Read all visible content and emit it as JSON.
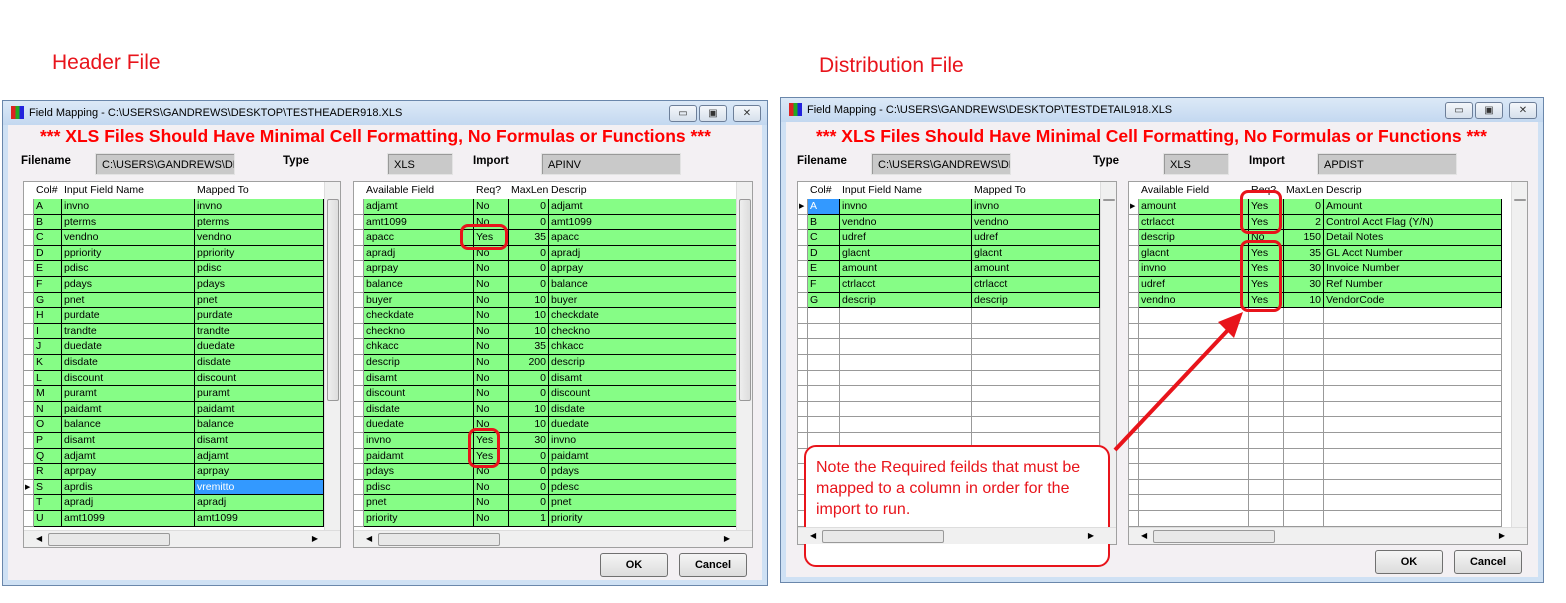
{
  "captions": {
    "header": "Header File",
    "distribution": "Distribution File"
  },
  "colors": {
    "mapped_row": "#86fd86",
    "selected": "#3399ff",
    "annotation": "#e8141b"
  },
  "header_window": {
    "title": "Field Mapping - C:\\USERS\\GANDREWS\\DESKTOP\\TESTHEADER918.XLS",
    "warning": "*** XLS Files Should Have Minimal Cell Formatting, No Formulas or Functions ***",
    "filename_label": "Filename",
    "filename": "C:\\USERS\\GANDREWS\\DESKTOP\\TE",
    "type_label": "Type",
    "type": "XLS",
    "import_label": "Import",
    "import": "APINV",
    "left_grid": {
      "columns": [
        "Col#",
        "Input Field Name",
        "Mapped To"
      ],
      "rows": [
        [
          "A",
          "invno",
          "invno"
        ],
        [
          "B",
          "pterms",
          "pterms"
        ],
        [
          "C",
          "vendno",
          "vendno"
        ],
        [
          "D",
          "ppriority",
          "ppriority"
        ],
        [
          "E",
          "pdisc",
          "pdisc"
        ],
        [
          "F",
          "pdays",
          "pdays"
        ],
        [
          "G",
          "pnet",
          "pnet"
        ],
        [
          "H",
          "purdate",
          "purdate"
        ],
        [
          "I",
          "trandte",
          "trandte"
        ],
        [
          "J",
          "duedate",
          "duedate"
        ],
        [
          "K",
          "disdate",
          "disdate"
        ],
        [
          "L",
          "discount",
          "discount"
        ],
        [
          "M",
          "puramt",
          "puramt"
        ],
        [
          "N",
          "paidamt",
          "paidamt"
        ],
        [
          "O",
          "balance",
          "balance"
        ],
        [
          "P",
          "disamt",
          "disamt"
        ],
        [
          "Q",
          "adjamt",
          "adjamt"
        ],
        [
          "R",
          "aprpay",
          "aprpay"
        ],
        [
          "S",
          "aprdis",
          "vremitto"
        ],
        [
          "T",
          "apradj",
          "apradj"
        ],
        [
          "U",
          "amt1099",
          "amt1099"
        ]
      ],
      "selected_row": 18
    },
    "right_grid": {
      "columns": [
        "Available Field",
        "Req?",
        "MaxLen",
        "Descrip"
      ],
      "rows": [
        [
          "adjamt",
          "No",
          "0",
          "adjamt"
        ],
        [
          "amt1099",
          "No",
          "0",
          "amt1099"
        ],
        [
          "apacc",
          "Yes",
          "35",
          "apacc"
        ],
        [
          "apradj",
          "No",
          "0",
          "apradj"
        ],
        [
          "aprpay",
          "No",
          "0",
          "aprpay"
        ],
        [
          "balance",
          "No",
          "0",
          "balance"
        ],
        [
          "buyer",
          "No",
          "10",
          "buyer"
        ],
        [
          "checkdate",
          "No",
          "10",
          "checkdate"
        ],
        [
          "checkno",
          "No",
          "10",
          "checkno"
        ],
        [
          "chkacc",
          "No",
          "35",
          "chkacc"
        ],
        [
          "descrip",
          "No",
          "200",
          "descrip"
        ],
        [
          "disamt",
          "No",
          "0",
          "disamt"
        ],
        [
          "discount",
          "No",
          "0",
          "discount"
        ],
        [
          "disdate",
          "No",
          "10",
          "disdate"
        ],
        [
          "duedate",
          "No",
          "10",
          "duedate"
        ],
        [
          "invno",
          "Yes",
          "30",
          "invno"
        ],
        [
          "paidamt",
          "Yes",
          "0",
          "paidamt"
        ],
        [
          "pdays",
          "No",
          "0",
          "pdays"
        ],
        [
          "pdisc",
          "No",
          "0",
          "pdesc"
        ],
        [
          "pnet",
          "No",
          "0",
          "pnet"
        ],
        [
          "priority",
          "No",
          "1",
          "priority"
        ]
      ]
    },
    "ok": "OK",
    "cancel": "Cancel"
  },
  "distribution_window": {
    "title": "Field Mapping - C:\\USERS\\GANDREWS\\DESKTOP\\TESTDETAIL918.XLS",
    "warning": "*** XLS Files Should Have Minimal Cell Formatting, No Formulas or Functions ***",
    "filename_label": "Filename",
    "filename": "C:\\USERS\\GANDREWS\\DESKTOP\\TE",
    "type_label": "Type",
    "type": "XLS",
    "import_label": "Import",
    "import": "APDIST",
    "left_grid": {
      "columns": [
        "Col#",
        "Input Field Name",
        "Mapped To"
      ],
      "rows": [
        [
          "A",
          "invno",
          "invno"
        ],
        [
          "B",
          "vendno",
          "vendno"
        ],
        [
          "C",
          "udref",
          "udref"
        ],
        [
          "D",
          "glacnt",
          "glacnt"
        ],
        [
          "E",
          "amount",
          "amount"
        ],
        [
          "F",
          "ctrlacct",
          "ctrlacct"
        ],
        [
          "G",
          "descrip",
          "descrip"
        ]
      ],
      "selected_row": 0
    },
    "right_grid": {
      "columns": [
        "Available Field",
        "Req?",
        "MaxLen",
        "Descrip"
      ],
      "rows": [
        [
          "amount",
          "Yes",
          "0",
          "Amount"
        ],
        [
          "ctrlacct",
          "Yes",
          "2",
          "Control Acct Flag (Y/N)"
        ],
        [
          "descrip",
          "No",
          "150",
          "Detail Notes"
        ],
        [
          "glacnt",
          "Yes",
          "35",
          "GL Acct Number"
        ],
        [
          "invno",
          "Yes",
          "30",
          "Invoice Number"
        ],
        [
          "udref",
          "Yes",
          "30",
          "Ref Number"
        ],
        [
          "vendno",
          "Yes",
          "10",
          "VendorCode"
        ]
      ]
    },
    "ok": "OK",
    "cancel": "Cancel"
  },
  "annotation": {
    "note": "Note the Required feilds that must be mapped to a column in order for the import to run."
  }
}
